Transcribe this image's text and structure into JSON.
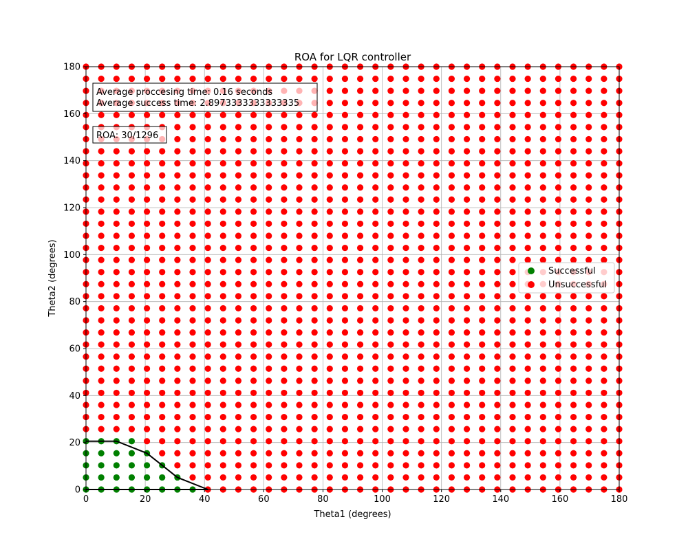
{
  "chart_data": {
    "type": "scatter",
    "title": "ROA for LQR controller",
    "xlabel": "Theta1 (degrees)",
    "ylabel": "Theta2 (degrees)",
    "xlim": [
      0,
      180
    ],
    "ylim": [
      0,
      180
    ],
    "xticks": [
      0,
      20,
      40,
      60,
      80,
      100,
      120,
      140,
      160,
      180
    ],
    "yticks": [
      0,
      20,
      40,
      60,
      80,
      100,
      120,
      140,
      160,
      180
    ],
    "grid": true,
    "grid_spec": {
      "start": 0,
      "stop": 180,
      "n": 36,
      "note_hidden": ""
    },
    "series": [
      {
        "name": "Successful",
        "color": "#008000",
        "points": [
          [
            0,
            0
          ],
          [
            5.14,
            0
          ],
          [
            10.29,
            0
          ],
          [
            15.43,
            0
          ],
          [
            20.57,
            0
          ],
          [
            25.71,
            0
          ],
          [
            30.86,
            0
          ],
          [
            36,
            0
          ],
          [
            0,
            5.14
          ],
          [
            5.14,
            5.14
          ],
          [
            10.29,
            5.14
          ],
          [
            15.43,
            5.14
          ],
          [
            20.57,
            5.14
          ],
          [
            25.71,
            5.14
          ],
          [
            30.86,
            5.14
          ],
          [
            0,
            10.29
          ],
          [
            5.14,
            10.29
          ],
          [
            10.29,
            10.29
          ],
          [
            15.43,
            10.29
          ],
          [
            20.57,
            10.29
          ],
          [
            25.71,
            10.29
          ],
          [
            0,
            15.43
          ],
          [
            5.14,
            15.43
          ],
          [
            10.29,
            15.43
          ],
          [
            15.43,
            15.43
          ],
          [
            20.57,
            15.43
          ],
          [
            0,
            20.57
          ],
          [
            5.14,
            20.57
          ],
          [
            10.29,
            20.57
          ],
          [
            15.43,
            20.57
          ]
        ]
      },
      {
        "name": "Unsuccessful",
        "color": "#ff0000",
        "points": "all remaining grid points"
      }
    ],
    "boundary": {
      "color": "#000000",
      "points": [
        [
          0,
          20.57
        ],
        [
          10.29,
          20.57
        ],
        [
          20.57,
          15.43
        ],
        [
          25.71,
          10.29
        ],
        [
          30.86,
          5.14
        ],
        [
          41.14,
          0
        ],
        [
          0,
          0
        ]
      ]
    },
    "annotations": [
      {
        "lines": [
          "Average proccesing time: 0.16 seconds",
          "Average success time: 2.8973333333333335"
        ]
      },
      {
        "lines": [
          "ROA: 30/1296"
        ]
      }
    ],
    "legend": {
      "position": "center-right",
      "entries": [
        "Successful",
        "Unsuccessful"
      ]
    }
  }
}
